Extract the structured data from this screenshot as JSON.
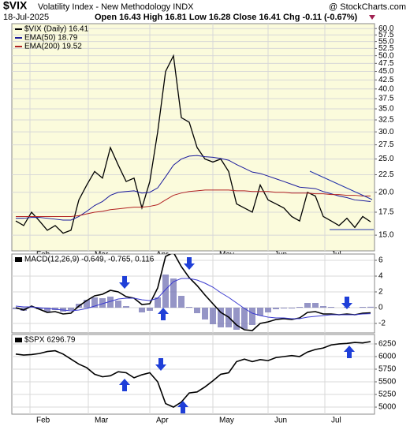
{
  "header": {
    "symbol": "$VIX",
    "name": "Volatility Index - New Methodology INDX",
    "source": "@ StockCharts.com",
    "date": "18-Jul-2025",
    "quote": "Open 16.43 High 16.81 Low 16.28 Close 16.41 Chg -0.11 (-0.67%)"
  },
  "chart_data": [
    {
      "type": "line",
      "log": true,
      "grid": true,
      "ylim": [
        13.5,
        62
      ],
      "yticks": [
        {
          "value": 15,
          "label": "15.0"
        },
        {
          "value": 17.5,
          "label": "17.5"
        },
        {
          "value": 20,
          "label": "20.0"
        },
        {
          "value": 22.5,
          "label": "22.5"
        },
        {
          "value": 25,
          "label": "25.0"
        },
        {
          "value": 27.5,
          "label": "27.5"
        },
        {
          "value": 30,
          "label": "30.0"
        },
        {
          "value": 32.5,
          "label": "32.5"
        },
        {
          "value": 35,
          "label": "35.0"
        },
        {
          "value": 37.5,
          "label": "37.5"
        },
        {
          "value": 40,
          "label": "40.0"
        },
        {
          "value": 42.5,
          "label": "42.5"
        },
        {
          "value": 45,
          "label": "45.0"
        },
        {
          "value": 47.5,
          "label": "47.5"
        },
        {
          "value": 50,
          "label": "50.0"
        },
        {
          "value": 52.5,
          "label": "52.5"
        },
        {
          "value": 55,
          "label": "55.0"
        },
        {
          "value": 57.5,
          "label": "57.5"
        },
        {
          "value": 60,
          "label": "60.0"
        }
      ],
      "xticks": [
        {
          "value": 1.8,
          "label": "Feb"
        },
        {
          "value": 9.2,
          "label": "Mar"
        },
        {
          "value": 17,
          "label": "Apr"
        },
        {
          "value": 25,
          "label": "May"
        },
        {
          "value": 32,
          "label": "Jun"
        },
        {
          "value": 39.2,
          "label": "Jul"
        }
      ],
      "series": [
        {
          "name": "$VIX (Daily) 16.41",
          "color": "#000000",
          "values": [
            16.5,
            16.0,
            17.5,
            16.5,
            15.5,
            16.0,
            15.2,
            15.5,
            19.0,
            21.0,
            23.0,
            22.0,
            27.0,
            24.0,
            21.5,
            22.0,
            18.0,
            21.5,
            30.0,
            45.0,
            50.0,
            33.0,
            32.0,
            27.0,
            25.0,
            24.5,
            25.0,
            23.0,
            18.5,
            18.0,
            17.5,
            21.0,
            19.0,
            18.5,
            18.0,
            17.0,
            16.5,
            20.0,
            19.5,
            17.0,
            16.5,
            16.0,
            16.8,
            15.8,
            17.0,
            16.41
          ]
        },
        {
          "name": "EMA(50) 18.79",
          "color": "#1a1a9c",
          "values": [
            16.8,
            16.8,
            16.9,
            16.9,
            16.8,
            16.7,
            16.6,
            16.6,
            17.0,
            17.6,
            18.3,
            18.8,
            19.6,
            20.0,
            20.1,
            20.2,
            19.9,
            20.0,
            20.6,
            22.2,
            24.0,
            25.0,
            25.5,
            25.6,
            25.4,
            25.3,
            25.1,
            24.8,
            24.1,
            23.5,
            22.9,
            22.7,
            22.3,
            21.9,
            21.5,
            21.1,
            20.7,
            20.6,
            20.5,
            20.1,
            19.8,
            19.5,
            19.3,
            19.0,
            18.9,
            18.79
          ]
        },
        {
          "name": "EMA(200) 19.52",
          "color": "#b22222",
          "values": [
            17.0,
            17.0,
            17.0,
            17.0,
            17.0,
            17.0,
            17.0,
            17.0,
            17.1,
            17.3,
            17.5,
            17.6,
            17.8,
            17.9,
            18.0,
            18.1,
            18.1,
            18.2,
            18.4,
            19.0,
            19.6,
            19.9,
            20.1,
            20.2,
            20.3,
            20.3,
            20.3,
            20.3,
            20.2,
            20.2,
            20.1,
            20.1,
            20.1,
            20.0,
            20.0,
            19.9,
            19.9,
            19.9,
            19.8,
            19.8,
            19.7,
            19.7,
            19.6,
            19.6,
            19.5,
            19.52
          ]
        }
      ]
    },
    {
      "type": "line",
      "grid": true,
      "title": "MACD(12,26,9) -0.649, -0.765, 0.116",
      "ylim": [
        -3.2,
        6.8
      ],
      "yticks": [
        -2,
        0,
        2,
        4,
        6
      ],
      "series": [
        {
          "name": "Histogram",
          "style": "histogram",
          "color": "#7a7ab8",
          "values": [
            -0.2,
            -0.4,
            0.1,
            -0.2,
            -0.5,
            -0.3,
            -0.5,
            -0.3,
            0.5,
            1.0,
            1.3,
            1.2,
            1.4,
            0.9,
            0.2,
            0.0,
            -0.6,
            -0.4,
            1.3,
            4.2,
            3.7,
            1.5,
            0.1,
            -0.7,
            -1.5,
            -2.1,
            -2.5,
            -2.5,
            -2.8,
            -2.7,
            -2.2,
            -1.0,
            -0.6,
            -0.2,
            -0.1,
            -0.1,
            0.1,
            0.6,
            0.6,
            0.2,
            0.1,
            0.0,
            0.1,
            0.0,
            0.1,
            0.116
          ]
        },
        {
          "name": "MACD",
          "color": "#000000",
          "values": [
            0.0,
            -0.3,
            0.2,
            -0.2,
            -0.6,
            -0.5,
            -0.8,
            -0.7,
            0.2,
            0.9,
            1.5,
            1.7,
            2.2,
            2.0,
            1.4,
            1.2,
            0.4,
            0.5,
            2.5,
            6.5,
            7.0,
            5.2,
            3.8,
            2.8,
            1.6,
            0.5,
            -0.6,
            -1.2,
            -2.2,
            -2.8,
            -2.9,
            -2.0,
            -1.8,
            -1.5,
            -1.4,
            -1.5,
            -1.3,
            -0.6,
            -0.5,
            -0.8,
            -0.8,
            -0.9,
            -0.8,
            -0.9,
            -0.7,
            -0.649
          ]
        },
        {
          "name": "Signal",
          "color": "#3b3bd0",
          "values": [
            0.2,
            0.1,
            0.1,
            0.0,
            -0.1,
            -0.2,
            -0.3,
            -0.4,
            -0.3,
            -0.1,
            0.2,
            0.5,
            0.8,
            1.1,
            1.2,
            1.2,
            1.0,
            0.9,
            1.2,
            2.3,
            3.3,
            3.7,
            3.7,
            3.5,
            3.1,
            2.6,
            1.9,
            1.3,
            0.6,
            -0.1,
            -0.7,
            -1.0,
            -1.2,
            -1.3,
            -1.3,
            -1.4,
            -1.4,
            -1.2,
            -1.1,
            -1.0,
            -0.9,
            -0.9,
            -0.9,
            -0.9,
            -0.8,
            -0.765
          ]
        }
      ]
    },
    {
      "type": "line",
      "grid": true,
      "title": "$SPX 6296.79",
      "ylim": [
        4860,
        6437
      ],
      "yticks": [
        5000,
        5250,
        5500,
        5750,
        6000,
        6250
      ],
      "xticks": [
        {
          "value": 1.8,
          "label": "Feb"
        },
        {
          "value": 9.2,
          "label": "Mar"
        },
        {
          "value": 17,
          "label": "Apr"
        },
        {
          "value": 25,
          "label": "May"
        },
        {
          "value": 32,
          "label": "Jun"
        },
        {
          "value": 39.2,
          "label": "Jul"
        }
      ],
      "series": [
        {
          "name": "$SPX",
          "color": "#000000",
          "values": [
            6050,
            6030,
            6040,
            6060,
            6100,
            6115,
            6050,
            5950,
            5850,
            5780,
            5650,
            5600,
            5620,
            5700,
            5680,
            5580,
            5640,
            5680,
            5500,
            5070,
            5000,
            5100,
            5280,
            5300,
            5400,
            5520,
            5650,
            5680,
            5900,
            5950,
            5900,
            5940,
            5920,
            5980,
            6000,
            6020,
            6000,
            6090,
            6140,
            6170,
            6230,
            6250,
            6260,
            6280,
            6270,
            6296.79
          ]
        }
      ]
    }
  ]
}
